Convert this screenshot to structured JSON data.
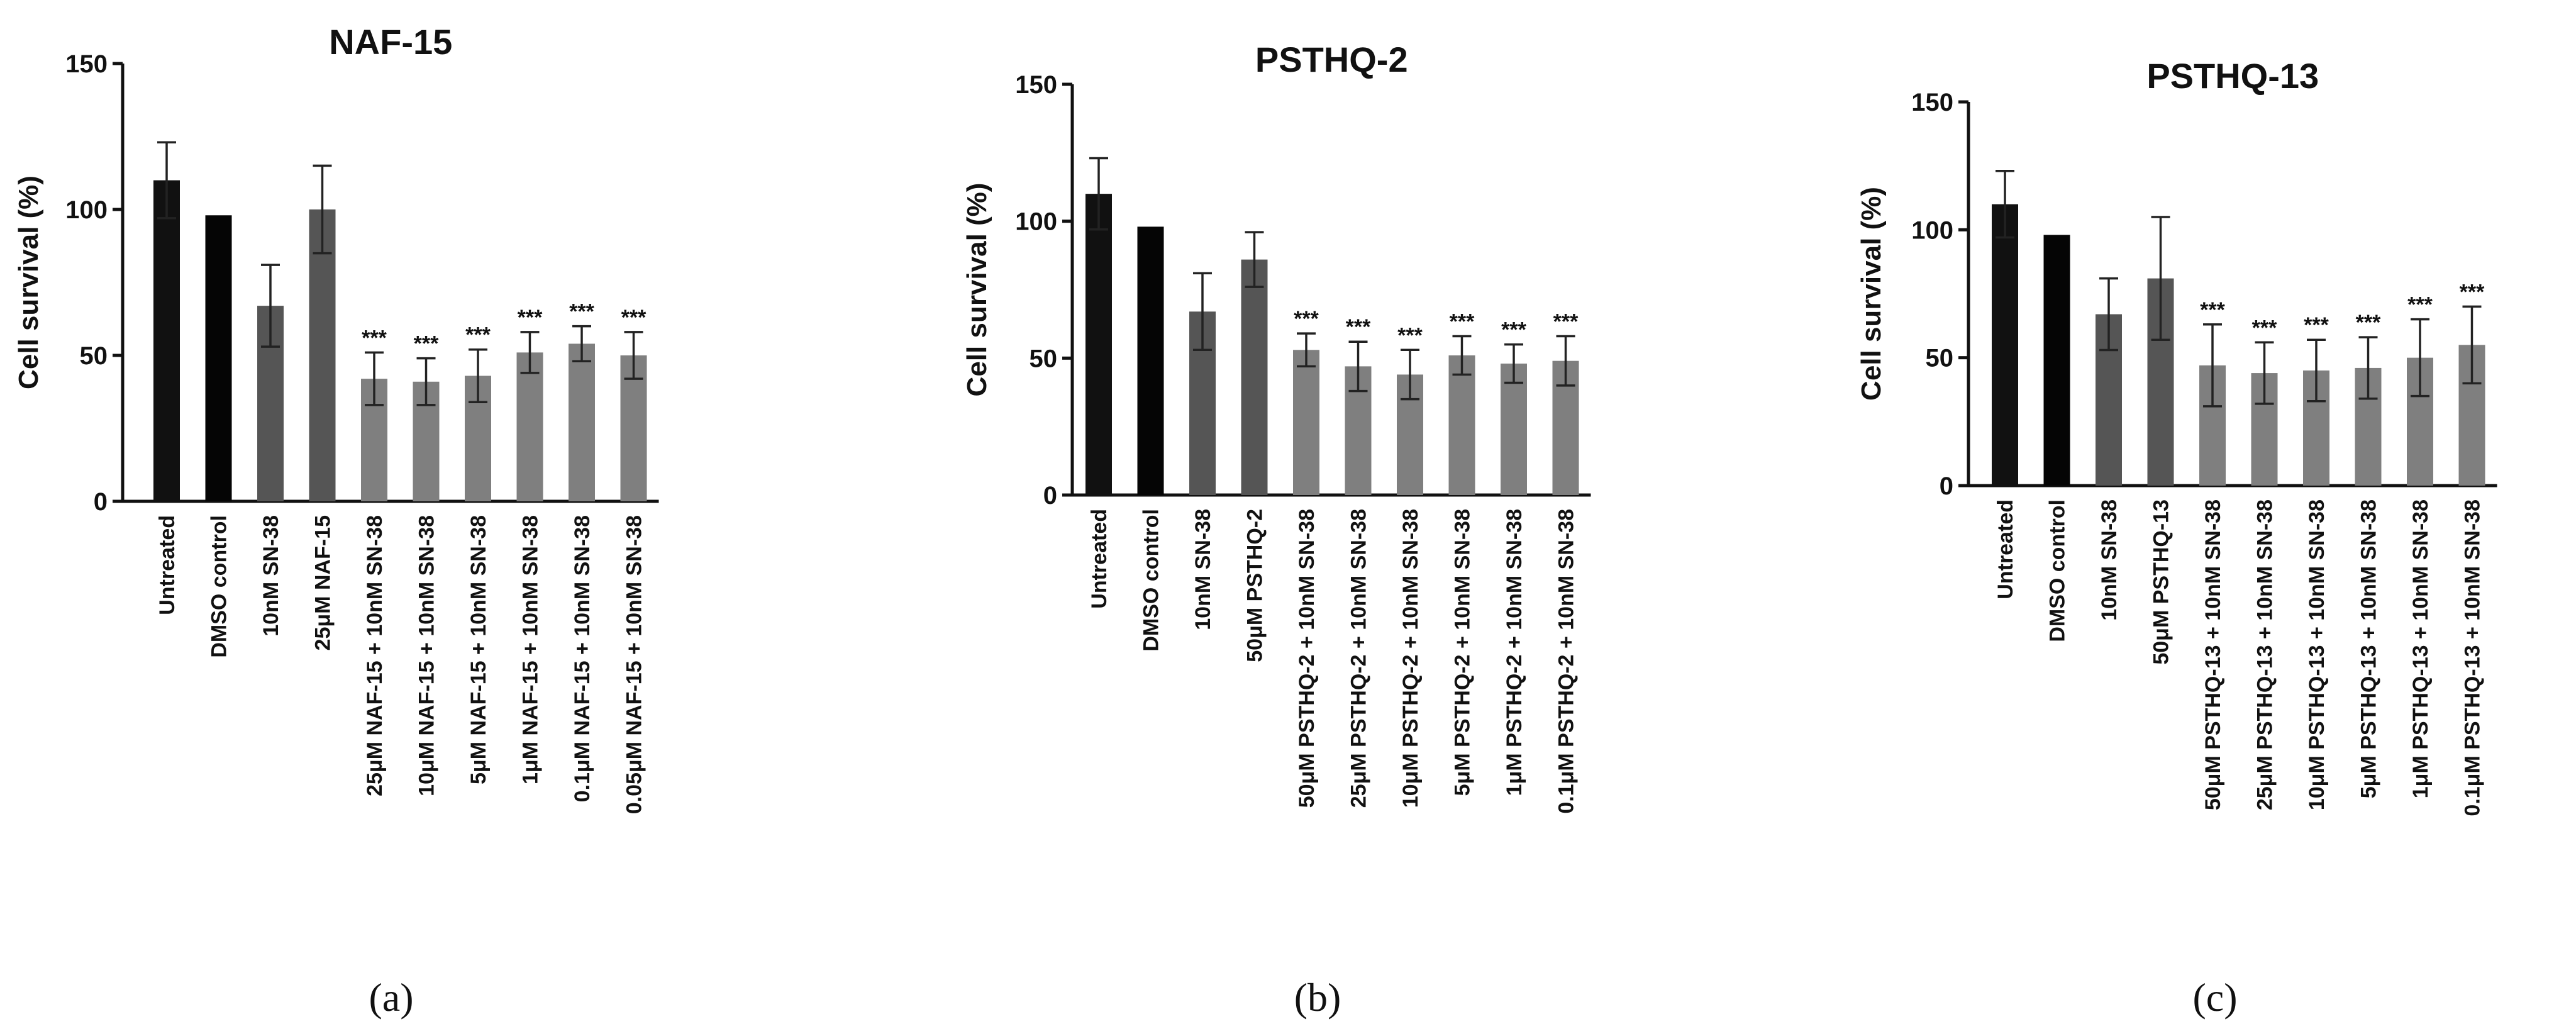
{
  "chart_data": [
    {
      "type": "bar",
      "title": "NAF-15",
      "panel_label": "(a)",
      "ylabel": "Cell survival  (%)",
      "ylim": [
        0,
        150
      ],
      "yticks": [
        0,
        50,
        100,
        150
      ],
      "significance_marker": "***",
      "categories": [
        "Untreated",
        "DMSO control",
        "10nM SN-38",
        "25μM NAF-15",
        "25μM NAF-15 + 10nM SN-38",
        "10μM NAF-15 + 10nM SN-38",
        "5μM NAF-15 + 10nM SN-38",
        "1μM NAF-15 + 10nM SN-38",
        "0.1μM NAF-15 + 10nM SN-38",
        "0.05μM NAF-15 + 10nM SN-38"
      ],
      "values": [
        110,
        98,
        67,
        100,
        42,
        41,
        43,
        51,
        54,
        50
      ],
      "errors": [
        13,
        0,
        14,
        15,
        9,
        8,
        9,
        7,
        6,
        8
      ],
      "significant": [
        false,
        false,
        false,
        false,
        true,
        true,
        true,
        true,
        true,
        true
      ],
      "colors": [
        "#111111",
        "#050505",
        "#555555",
        "#555555",
        "#7f7f7f",
        "#7f7f7f",
        "#7f7f7f",
        "#7f7f7f",
        "#7f7f7f",
        "#7f7f7f"
      ]
    },
    {
      "type": "bar",
      "title": "PSTHQ-2",
      "panel_label": "(b)",
      "ylabel": "Cell survival  (%)",
      "ylim": [
        0,
        150
      ],
      "yticks": [
        0,
        50,
        100,
        150
      ],
      "significance_marker": "***",
      "categories": [
        "Untreated",
        "DMSO control",
        "10nM SN-38",
        "50μM PSTHQ-2",
        "50μM PSTHQ-2 + 10nM SN-38",
        "25μM PSTHQ-2 + 10nM SN-38",
        "10μM PSTHQ-2 + 10nM SN-38",
        "5μM PSTHQ-2 + 10nM SN-38",
        "1μM PSTHQ-2 + 10nM SN-38",
        "0.1μM PSTHQ-2 + 10nM SN-38"
      ],
      "values": [
        110,
        98,
        67,
        86,
        53,
        47,
        44,
        51,
        48,
        49
      ],
      "errors": [
        13,
        0,
        14,
        10,
        6,
        9,
        9,
        7,
        7,
        9
      ],
      "significant": [
        false,
        false,
        false,
        false,
        true,
        true,
        true,
        true,
        true,
        true
      ],
      "colors": [
        "#111111",
        "#050505",
        "#555555",
        "#555555",
        "#7f7f7f",
        "#7f7f7f",
        "#7f7f7f",
        "#7f7f7f",
        "#7f7f7f",
        "#7f7f7f"
      ]
    },
    {
      "type": "bar",
      "title": "PSTHQ-13",
      "panel_label": "(c)",
      "ylabel": "Cell survival  (%)",
      "ylim": [
        0,
        150
      ],
      "yticks": [
        0,
        50,
        100,
        150
      ],
      "significance_marker": "***",
      "categories": [
        "Untreated",
        "DMSO control",
        "10nM SN-38",
        "50μM PSTHQ-13",
        "50μM PSTHQ-13 + 10nM SN-38",
        "25μM PSTHQ-13 + 10nM SN-38",
        "10μM PSTHQ-13 + 10nM SN-38",
        "5μM PSTHQ-13 + 10nM SN-38",
        "1μM PSTHQ-13 + 10nM SN-38",
        "0.1μM PSTHQ-13 + 10nM SN-38"
      ],
      "values": [
        110,
        98,
        67,
        81,
        47,
        44,
        45,
        46,
        50,
        55
      ],
      "errors": [
        13,
        0,
        14,
        24,
        16,
        12,
        12,
        12,
        15,
        15
      ],
      "significant": [
        false,
        false,
        false,
        false,
        true,
        true,
        true,
        true,
        true,
        true
      ],
      "colors": [
        "#111111",
        "#050505",
        "#555555",
        "#555555",
        "#7f7f7f",
        "#7f7f7f",
        "#7f7f7f",
        "#7f7f7f",
        "#7f7f7f",
        "#7f7f7f"
      ]
    }
  ]
}
